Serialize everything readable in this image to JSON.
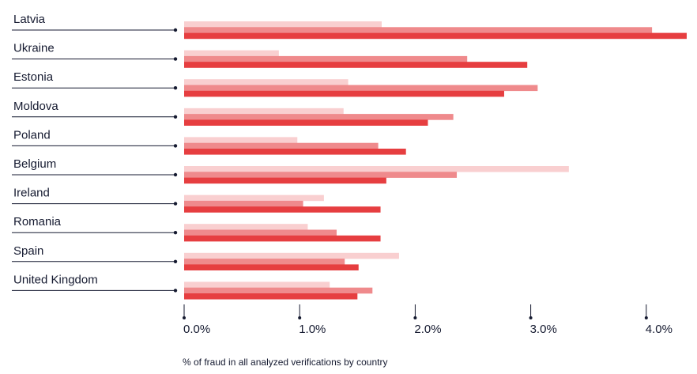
{
  "chart_data": {
    "type": "bar",
    "orientation": "horizontal",
    "categories": [
      "Latvia",
      "Ukraine",
      "Estonia",
      "Moldova",
      "Poland",
      "Belgium",
      "Ireland",
      "Romania",
      "Spain",
      "United Kingdom"
    ],
    "series": [
      {
        "color": "#f9cfd0",
        "values": [
          1.71,
          0.82,
          1.42,
          1.38,
          0.98,
          3.33,
          1.21,
          1.07,
          1.86,
          1.26
        ]
      },
      {
        "color": "#ef8a8c",
        "values": [
          4.05,
          2.45,
          3.06,
          2.33,
          1.68,
          2.36,
          1.03,
          1.32,
          1.39,
          1.63
        ]
      },
      {
        "color": "#e63e40",
        "values": [
          4.35,
          2.97,
          2.77,
          2.11,
          1.92,
          1.75,
          1.7,
          1.7,
          1.51,
          1.5
        ]
      }
    ],
    "xticks": [
      "0.0%",
      "1.0%",
      "2.0%",
      "3.0%",
      "4.0%"
    ],
    "xtick_values": [
      0,
      1,
      2,
      3,
      4
    ],
    "xlim": [
      0,
      4.35
    ],
    "xlabel": "% of fraud in all analyzed verifications by country",
    "grid": false,
    "legend": "none"
  },
  "colors": {
    "text": "#151a30"
  }
}
